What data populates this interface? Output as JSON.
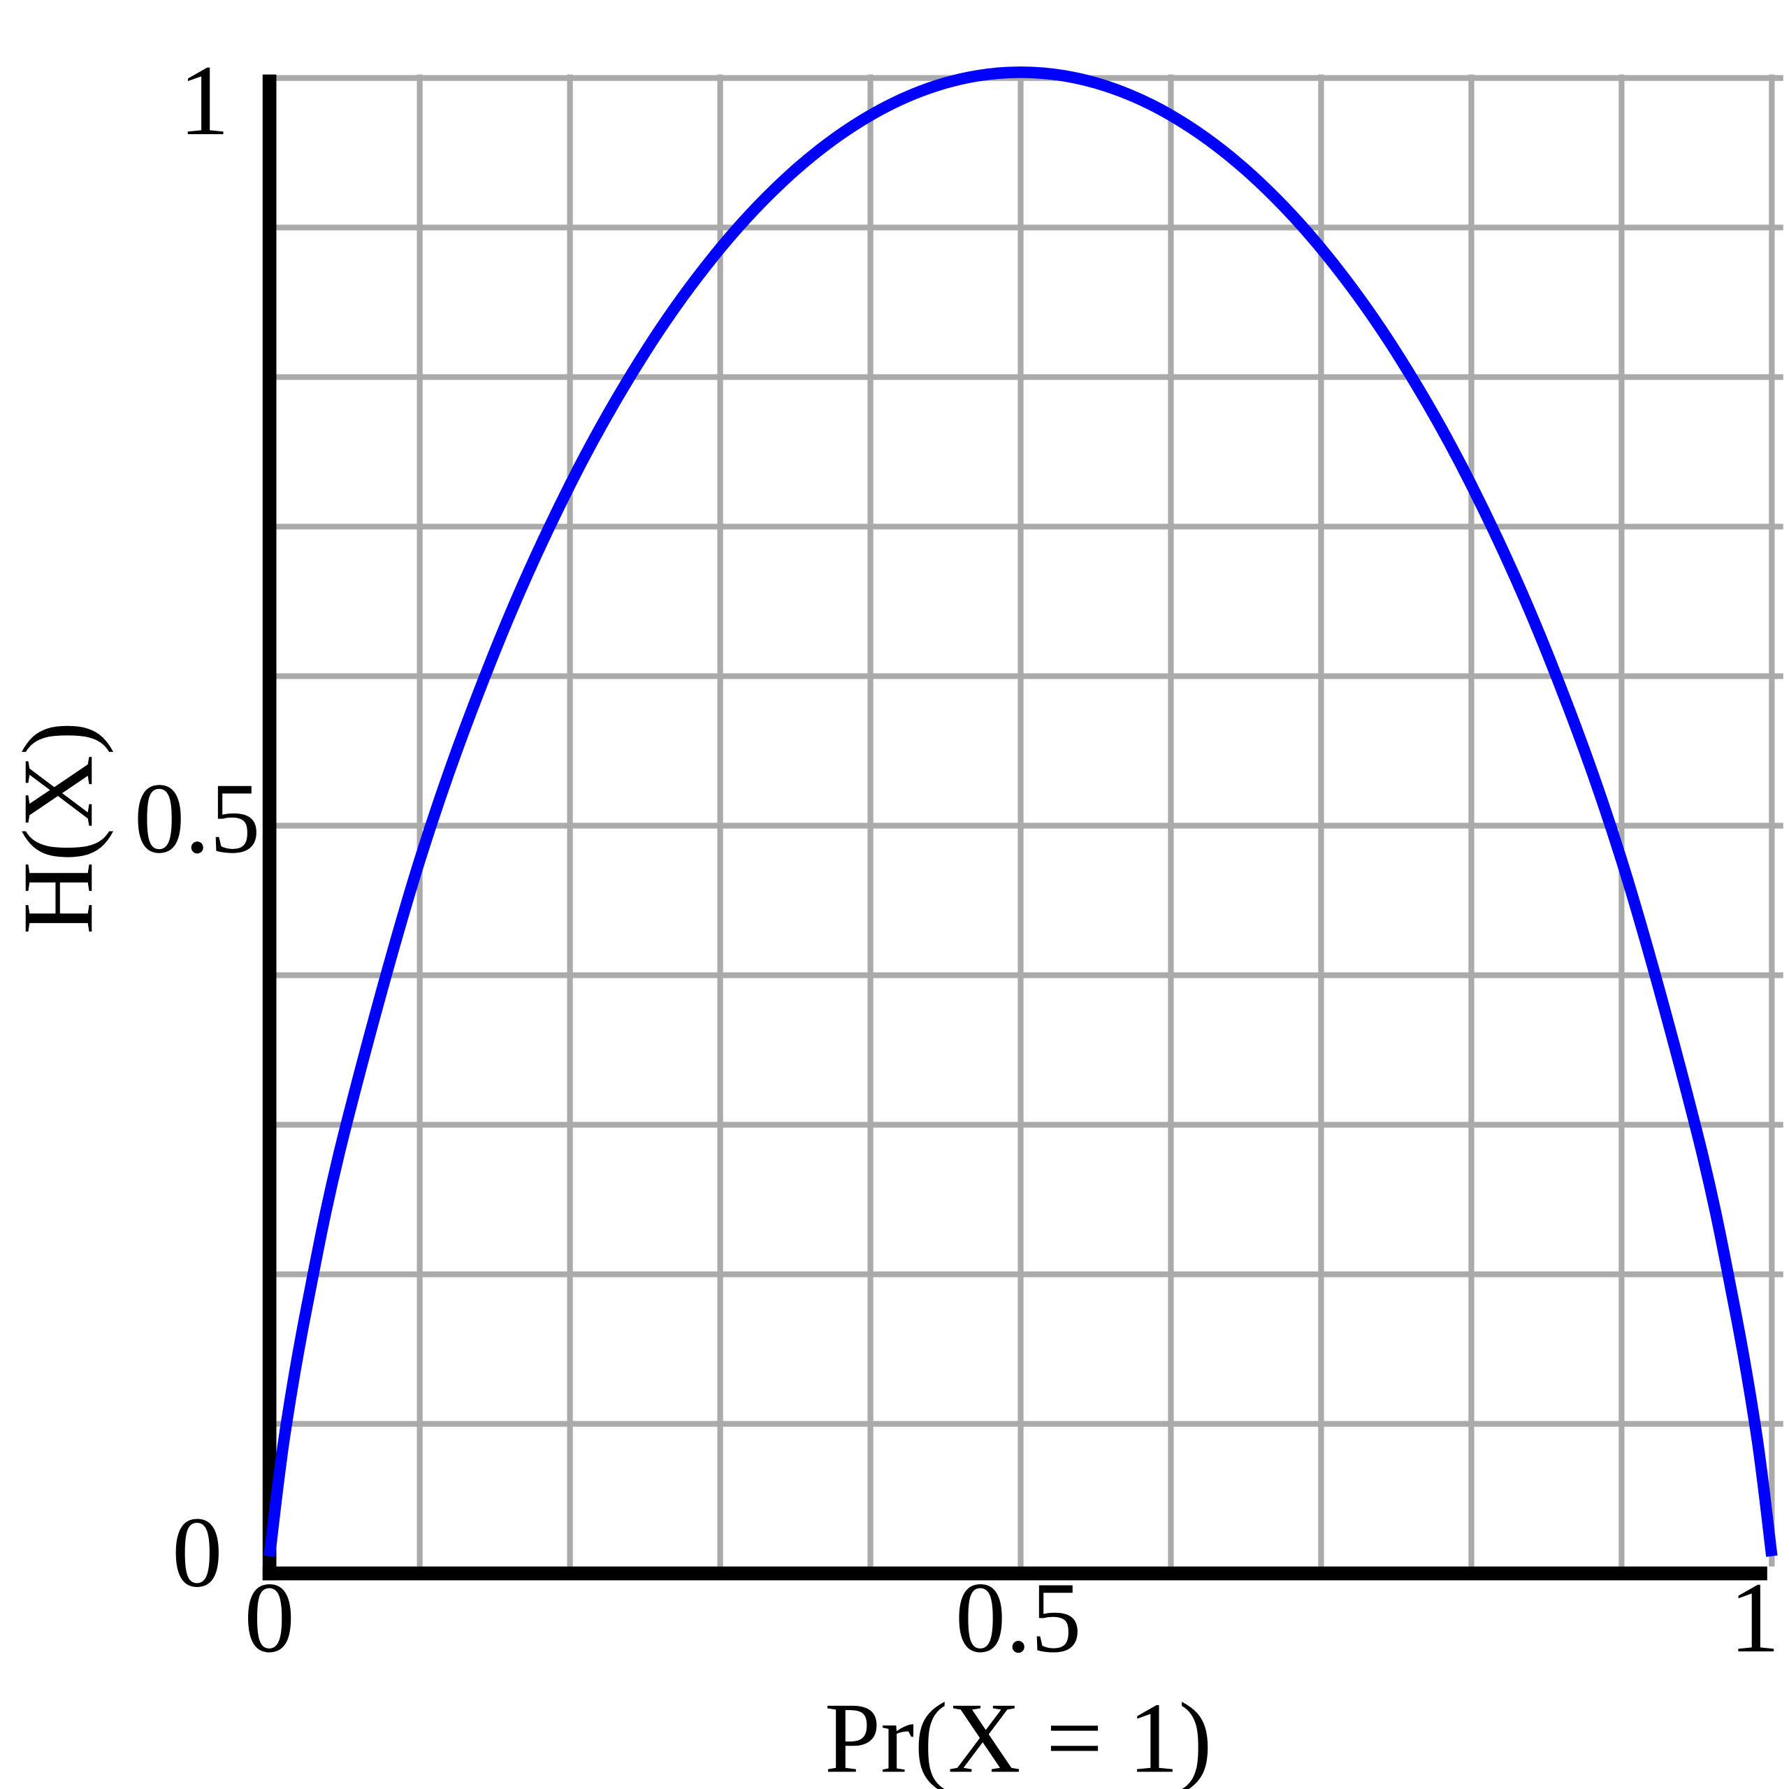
{
  "chart_data": {
    "type": "line",
    "xlabel": "Pr(X = 1)",
    "ylabel": "H(X)",
    "xlim": [
      0,
      1
    ],
    "ylim": [
      0,
      1
    ],
    "xticks": [
      "0",
      "0.5",
      "1"
    ],
    "yticks": [
      "0",
      "0.5",
      "1"
    ],
    "grid": true,
    "grid_step": 0.1,
    "colors": {
      "line": "#0000ff",
      "grid": "#aaaaaa",
      "axis": "#000000"
    },
    "series": [
      {
        "x": [
          0,
          0.01,
          0.025,
          0.05,
          0.1,
          0.15,
          0.2,
          0.25,
          0.3,
          0.35,
          0.4,
          0.45,
          0.5,
          0.55,
          0.6,
          0.65,
          0.7,
          0.75,
          0.8,
          0.85,
          0.9,
          0.95,
          0.975,
          0.99,
          1
        ],
        "y": [
          0,
          0.0808,
          0.1687,
          0.2864,
          0.469,
          0.6098,
          0.7219,
          0.8113,
          0.8813,
          0.9341,
          0.971,
          0.9928,
          1,
          0.9928,
          0.971,
          0.9341,
          0.8813,
          0.8113,
          0.7219,
          0.6098,
          0.469,
          0.2864,
          0.1687,
          0.0808,
          0
        ]
      }
    ]
  }
}
